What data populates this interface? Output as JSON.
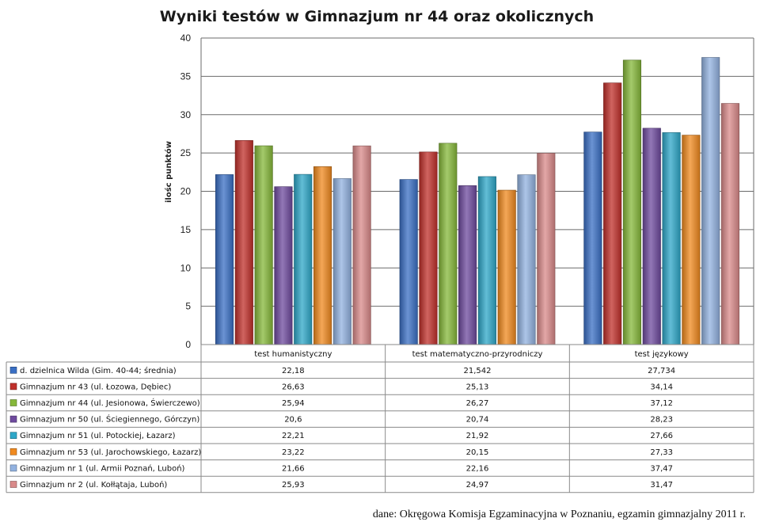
{
  "chart_data": {
    "type": "bar",
    "title": "Wyniki testów w Gimnazjum nr 44 oraz okolicznych",
    "ylabel": "ilośc punktów",
    "xlabel": "",
    "ylim": [
      0,
      40
    ],
    "yticks": [
      0,
      5,
      10,
      15,
      20,
      25,
      30,
      35,
      40
    ],
    "grid": true,
    "legend": "data-table-below",
    "categories": [
      "test humanistyczny",
      "test matematyczno-przyrodniczy",
      "test językowy"
    ],
    "series": [
      {
        "name": "d. dzielnica Wilda (Gim. 40-44; średnia)",
        "color": "#3a6fc4",
        "values": [
          22.18,
          21.542,
          27.734
        ],
        "labels": [
          "22,18",
          "21,542",
          "27,734"
        ]
      },
      {
        "name": "Gimnazjum nr 43 (ul. Łozowa, Dębiec)",
        "color": "#c0302b",
        "values": [
          26.63,
          25.13,
          34.14
        ],
        "labels": [
          "26,63",
          "25,13",
          "34,14"
        ]
      },
      {
        "name": "Gimnazjum nr 44 (ul. Jesionowa, Świerczewo)",
        "color": "#86b83a",
        "values": [
          25.94,
          26.27,
          37.12
        ],
        "labels": [
          "25,94",
          "26,27",
          "37,12"
        ]
      },
      {
        "name": "Gimnazjum nr 50 (ul. Ściegiennego, Górczyn)",
        "color": "#6e4a9e",
        "values": [
          20.6,
          20.74,
          28.23
        ],
        "labels": [
          "20,6",
          "20,74",
          "28,23"
        ]
      },
      {
        "name": "Gimnazjum nr 51 (ul. Potockiej, Łazarz)",
        "color": "#2ea7c8",
        "values": [
          22.21,
          21.92,
          27.66
        ],
        "labels": [
          "22,21",
          "21,92",
          "27,66"
        ]
      },
      {
        "name": "Gimnazjum nr 53 (ul. Jarochowskiego, Łazarz)",
        "color": "#f08a1f",
        "values": [
          23.22,
          20.15,
          27.33
        ],
        "labels": [
          "23,22",
          "20,15",
          "27,33"
        ]
      },
      {
        "name": "Gimnazjum nr 1 (ul. Armii Poznań, Luboń)",
        "color": "#92b2e0",
        "values": [
          21.66,
          22.16,
          37.47
        ],
        "labels": [
          "21,66",
          "22,16",
          "37,47"
        ]
      },
      {
        "name": "Gimnazjum nr 2 (ul. Kołłątaja, Luboń)",
        "color": "#d98a8a",
        "values": [
          25.93,
          24.97,
          31.47
        ],
        "labels": [
          "25,93",
          "24,97",
          "31,47"
        ]
      }
    ]
  },
  "source_note": "dane: Okręgowa Komisja Egzaminacyjna w Poznaniu, egzamin gimnazjalny 2011 r."
}
